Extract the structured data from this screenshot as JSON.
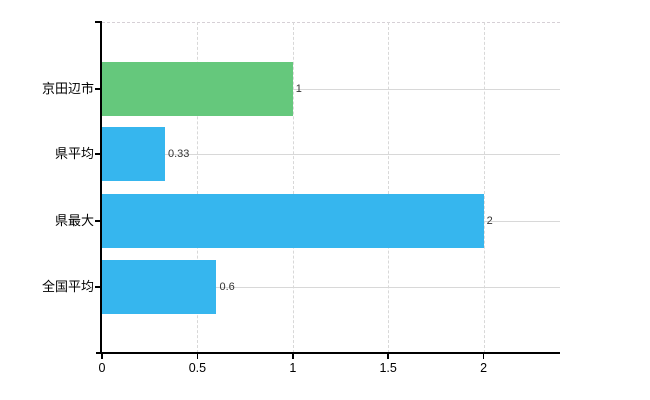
{
  "chart_data": {
    "type": "bar",
    "orientation": "horizontal",
    "title": "",
    "xlabel": "",
    "ylabel": "",
    "categories": [
      "京田辺市",
      "県平均",
      "県最大",
      "全国平均"
    ],
    "values": [
      1,
      0.33,
      2,
      0.6
    ],
    "value_labels": [
      "1",
      "0.33",
      "2",
      "0.6"
    ],
    "bar_colors": [
      "#65c87c",
      "#36b6ee",
      "#36b6ee",
      "#36b6ee"
    ],
    "xlim": [
      0,
      2.4
    ],
    "x_ticks": [
      {
        "value": 0,
        "label": "0"
      },
      {
        "value": 0.5,
        "label": "0.5"
      },
      {
        "value": 1,
        "label": "1"
      },
      {
        "value": 1.5,
        "label": "1.5"
      },
      {
        "value": 2,
        "label": "2"
      }
    ],
    "grid": true,
    "legend_position": "none",
    "colors": {
      "highlight_bar": "#65c87c",
      "default_bar": "#36b6ee",
      "axis": "#000000",
      "gridline": "#d8d8d8",
      "value_label_text": "#333333",
      "category_label_text": "#000000",
      "background": "#ffffff"
    }
  }
}
